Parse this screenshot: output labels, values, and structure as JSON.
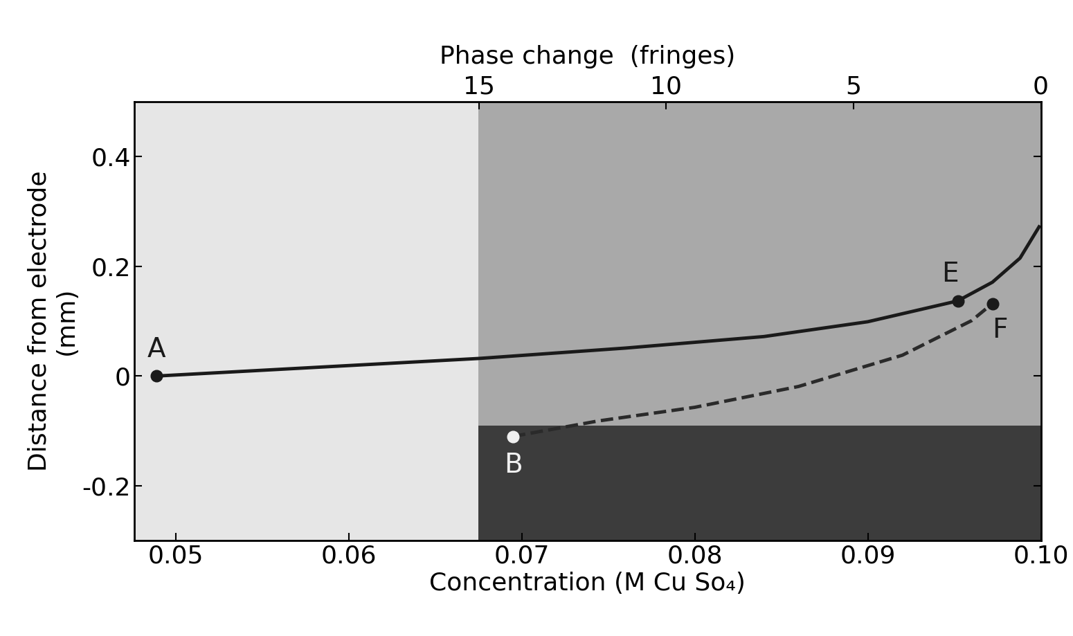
{
  "chart_data": {
    "type": "line",
    "xlabel": "Concentration (M Cu So₄)",
    "ylabel": "Distance from electrode\n(mm)",
    "x2label": "Phase change  (fringes)",
    "xlim": [
      0.0476,
      0.1
    ],
    "xticks": [
      0.05,
      0.06,
      0.07,
      0.08,
      0.09,
      {
        "value": 0.1,
        "label": "0.10"
      }
    ],
    "ylim": [
      -0.3,
      0.5
    ],
    "yticks": [
      -0.2,
      0,
      0.2,
      0.4
    ],
    "x2lim": [
      24.2,
      0
    ],
    "x2ticks": [
      15,
      10,
      5,
      0
    ],
    "interferogram": {
      "x": [
        0.0675,
        0.1
      ],
      "electrode_edge": -0.09
    },
    "series": [
      {
        "color": "#1a1a1a",
        "line_style": "solid",
        "x": [
          0.0489,
          0.0675,
          0.076,
          0.084,
          0.09,
          0.0952,
          0.0972,
          0.0988,
          0.0999
        ],
        "values": [
          0.0,
          0.032,
          0.051,
          0.072,
          0.099,
          0.137,
          0.171,
          0.215,
          0.272
        ]
      },
      {
        "color": "#2a2a2a",
        "line_style": "dashed",
        "x": [
          0.0695,
          0.0744,
          0.08,
          0.086,
          0.092,
          0.096,
          0.0972
        ],
        "values": [
          -0.11,
          -0.082,
          -0.057,
          -0.019,
          0.038,
          0.101,
          0.132
        ]
      }
    ],
    "points": [
      {
        "label": "A",
        "x": 0.0489,
        "y": 0.0,
        "color": "#1a1a1a"
      },
      {
        "label": "B",
        "x": 0.0695,
        "y": -0.11,
        "color": "#f0f0f0"
      },
      {
        "label": "E",
        "x": 0.0952,
        "y": 0.137,
        "color": "#1a1a1a"
      },
      {
        "label": "F",
        "x": 0.0972,
        "y": 0.132,
        "color": "#1a1a1a"
      }
    ]
  }
}
